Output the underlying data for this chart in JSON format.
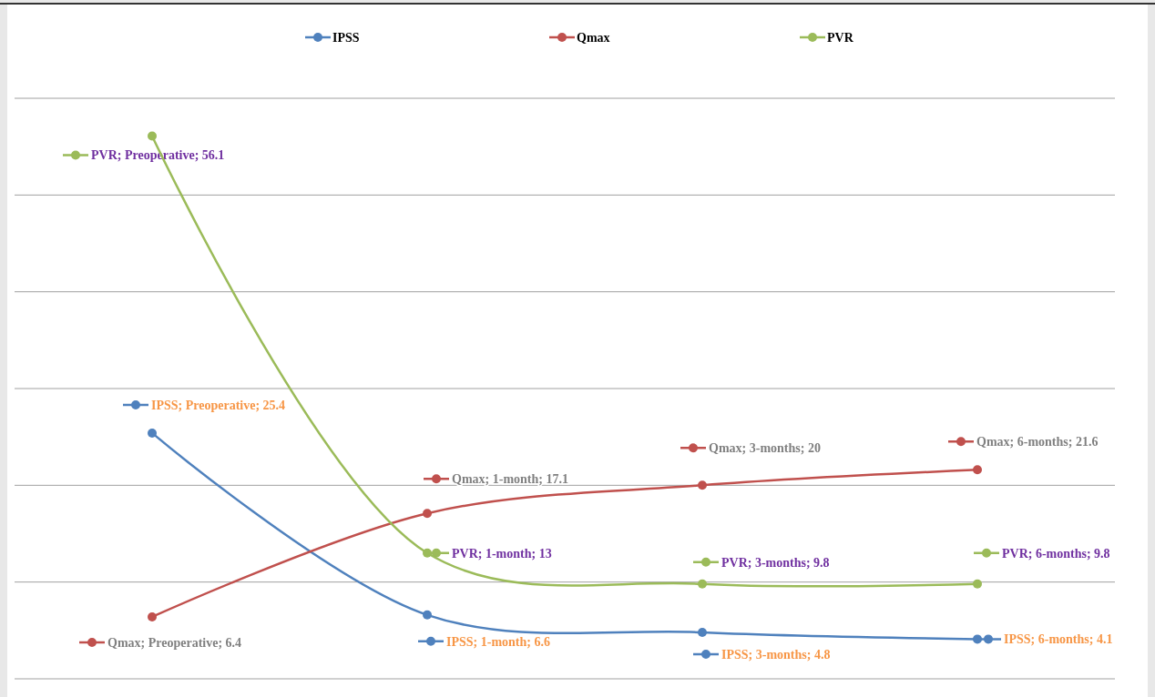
{
  "chart_data": {
    "type": "line",
    "categories": [
      null,
      null,
      null,
      null
    ],
    "series": [
      {
        "name": "IPSS",
        "color": "#4f81bd",
        "values": [
          25.4,
          6.6,
          4.8,
          4.1
        ],
        "value_labels": [
          "IPSS; Preoperative; 25.4",
          "IPSS; 1-month; 6.6",
          "IPSS; 3-months; 4.8",
          "IPSS; 6-months; 4.1"
        ]
      },
      {
        "name": "Qmax",
        "color": "#c0504d",
        "values": [
          6.4,
          17.1,
          20,
          21.6
        ],
        "value_labels": [
          "Qmax; Preoperative; 6.4",
          "Qmax; 1-month; 17.1",
          "Qmax; 3-months; 20",
          "Qmax; 6-months; 21.6"
        ]
      },
      {
        "name": "PVR",
        "color": "#9bbb59",
        "values": [
          56.1,
          13,
          9.8,
          9.8
        ],
        "value_labels": [
          "PVR; Preoperative; 56.1",
          "PVR; 1-month; 13",
          "PVR; 3-months; 9.8",
          "PVR; 6-months; 9.8"
        ]
      }
    ],
    "ylim": [
      0,
      60
    ],
    "yticks": [
      {
        "value": 0,
        "label": null
      },
      {
        "value": 10,
        "label": null
      },
      {
        "value": 20,
        "label": null
      },
      {
        "value": 30,
        "label": null
      },
      {
        "value": 40,
        "label": null
      },
      {
        "value": 50,
        "label": null
      },
      {
        "value": 60,
        "label": null
      }
    ],
    "grid": "y",
    "legend": "top",
    "marker": "circle",
    "line_style": "solid"
  }
}
